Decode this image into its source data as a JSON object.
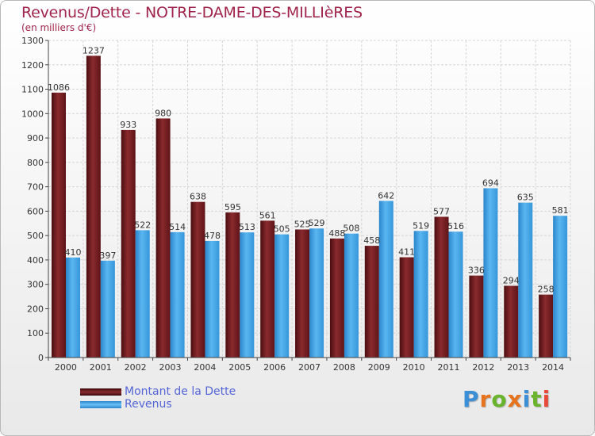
{
  "page": {
    "title": "Revenus/Dette - NOTRE-DAME-DES-MILLIèRES",
    "subtitle": "(en milliers d'€)"
  },
  "legend": {
    "items": [
      {
        "label": "Montant de la Dette",
        "color": "#7a1e22"
      },
      {
        "label": "Revenus",
        "color": "#3d9fe0"
      }
    ]
  },
  "logo": {
    "text": "Proxiti",
    "letters": [
      {
        "char": "P",
        "color": "#3a8fd6"
      },
      {
        "char": "r",
        "color": "#e8731d"
      },
      {
        "char": "o",
        "color": "#6ab42d"
      },
      {
        "char": "x",
        "color": "#e8731d"
      },
      {
        "char": "i",
        "color": "#3a8fd6"
      },
      {
        "char": "t",
        "color": "#6ab42d"
      },
      {
        "char": "i",
        "color": "#e84a3a"
      }
    ]
  },
  "chart_data": {
    "type": "bar",
    "title": "Revenus/Dette - NOTRE-DAME-DES-MILLIèRES",
    "subtitle": "(en milliers d'€)",
    "categories": [
      "2000",
      "2001",
      "2002",
      "2003",
      "2004",
      "2005",
      "2006",
      "2007",
      "2008",
      "2009",
      "2010",
      "2011",
      "2012",
      "2013",
      "2014"
    ],
    "series": [
      {
        "name": "Montant de la Dette",
        "color": "#7a1e22",
        "values": [
          1086,
          1237,
          933,
          980,
          638,
          595,
          561,
          525,
          488,
          458,
          411,
          577,
          336,
          294,
          258
        ]
      },
      {
        "name": "Revenus",
        "color": "#3d9fe0",
        "values": [
          410,
          397,
          522,
          514,
          478,
          513,
          505,
          529,
          508,
          642,
          519,
          516,
          694,
          635,
          581
        ]
      }
    ],
    "ylim": [
      0,
      1300
    ],
    "yticks": [
      0,
      100,
      200,
      300,
      400,
      500,
      600,
      700,
      800,
      900,
      1000,
      1100,
      1200,
      1300
    ],
    "grid": true,
    "legend_position": "bottom-left"
  }
}
